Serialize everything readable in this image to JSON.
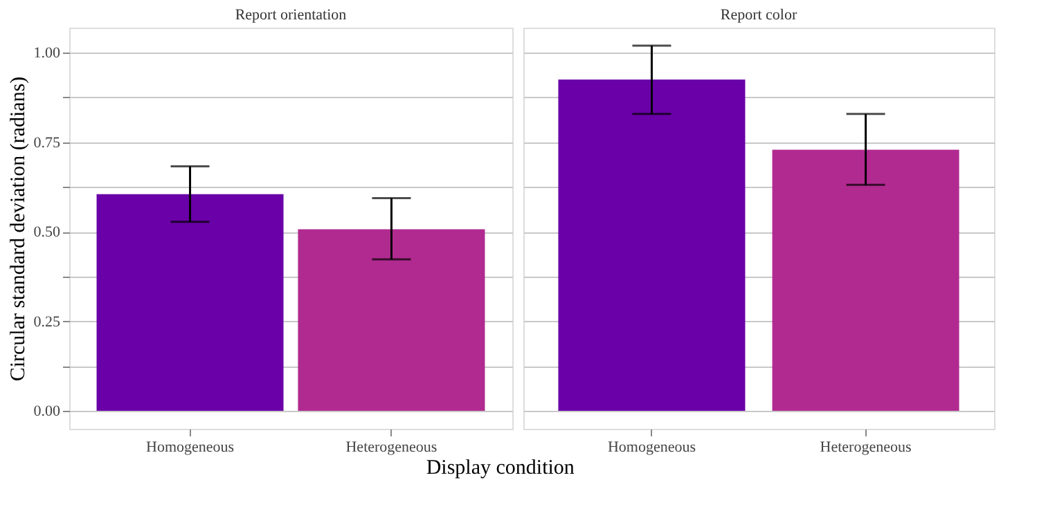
{
  "chart_data": [
    {
      "type": "bar",
      "title": "Report orientation",
      "xlabel": "Display condition",
      "ylabel": "Circular standard deviation (radians)",
      "categories": [
        "Homogeneous",
        "Heterogeneous"
      ],
      "values": [
        0.605,
        0.507
      ],
      "colors": [
        "#6a00a8",
        "#b12a90"
      ],
      "errors": [
        [
          0.528,
          0.683
        ],
        [
          0.423,
          0.594
        ]
      ],
      "ylim": [
        -0.05,
        1.07
      ],
      "yticks": [
        {
          "value": 0,
          "label": "0.00"
        },
        {
          "value": 0.125,
          "label": null
        },
        {
          "value": 0.25,
          "label": "0.25"
        },
        {
          "value": 0.375,
          "label": null
        },
        {
          "value": 0.5,
          "label": "0.50"
        },
        {
          "value": 0.625,
          "label": null
        },
        {
          "value": 0.75,
          "label": "0.75"
        },
        {
          "value": 0.875,
          "label": null
        },
        {
          "value": 1,
          "label": "1.00"
        }
      ],
      "grid": "y"
    },
    {
      "type": "bar",
      "title": "Report color",
      "categories": [
        "Homogeneous",
        "Heterogeneous"
      ],
      "values": [
        0.925,
        0.729
      ],
      "colors": [
        "#6a00a8",
        "#b12a90"
      ],
      "errors": [
        [
          0.829,
          1.02
        ],
        [
          0.631,
          0.829
        ]
      ],
      "ylim": [
        -0.05,
        1.07
      ],
      "yticks": [
        0,
        0.125,
        0.25,
        0.375,
        0.5,
        0.625,
        0.75,
        0.875,
        1
      ],
      "grid": "y",
      "tick_labels": "x"
    }
  ]
}
